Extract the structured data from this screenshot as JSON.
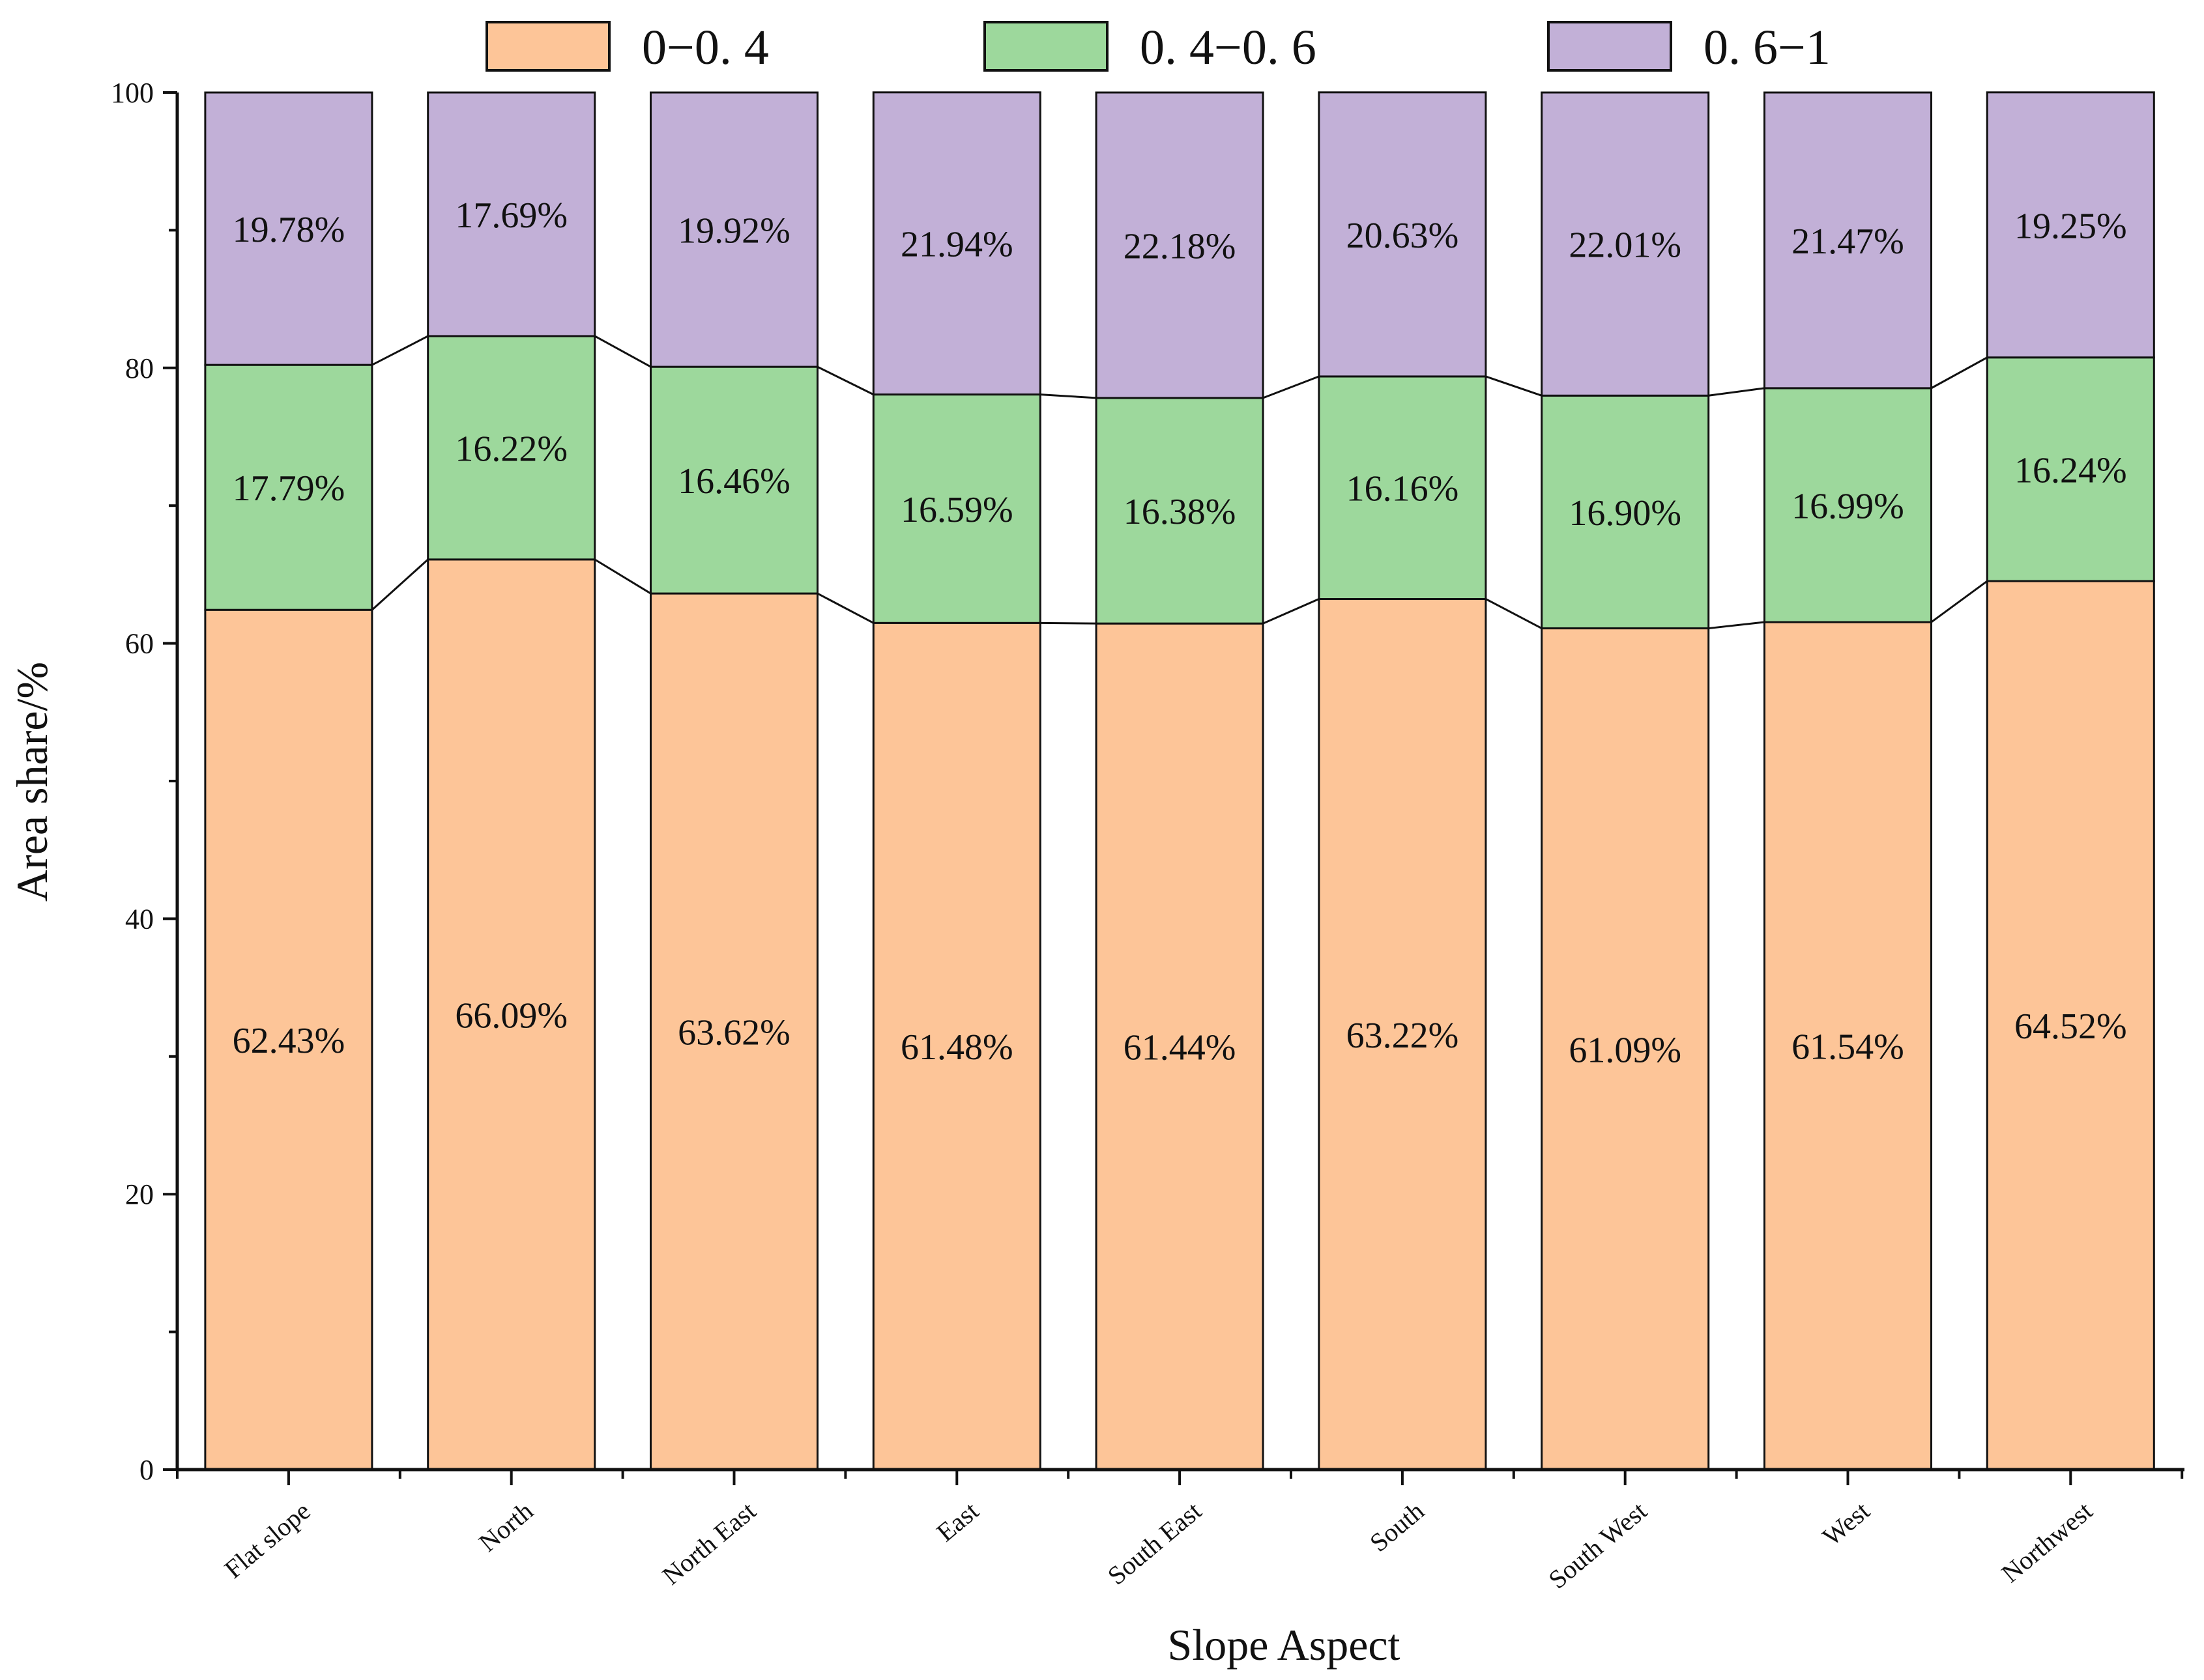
{
  "chart_data": {
    "type": "bar",
    "stacked": true,
    "title": "",
    "xlabel": "Slope Aspect",
    "ylabel": "Area share/%",
    "ylim": [
      0,
      100
    ],
    "yticks": [
      0,
      20,
      40,
      60,
      80,
      100
    ],
    "legend_position": "top-center",
    "connector_lines": true,
    "categories": [
      "Flat slope",
      "North",
      "North East",
      "East",
      "South East",
      "South",
      "South West",
      "West",
      "Northwest"
    ],
    "series": [
      {
        "name": "0−0. 4",
        "color": "#FDC598",
        "values": [
          62.43,
          66.09,
          63.62,
          61.48,
          61.44,
          63.22,
          61.09,
          61.54,
          64.52
        ],
        "labels": [
          "62.43%",
          "66.09%",
          "63.62%",
          "61.48%",
          "61.44%",
          "63.22%",
          "61.09%",
          "61.54%",
          "64.52%"
        ]
      },
      {
        "name": "0. 4−0. 6",
        "color": "#9DD89C",
        "values": [
          17.79,
          16.22,
          16.46,
          16.59,
          16.38,
          16.16,
          16.9,
          16.99,
          16.24
        ],
        "labels": [
          "17.79%",
          "16.22%",
          "16.46%",
          "16.59%",
          "16.38%",
          "16.16%",
          "16.90%",
          "16.99%",
          "16.24%"
        ]
      },
      {
        "name": "0. 6−1",
        "color": "#C2B0D7",
        "values": [
          19.78,
          17.69,
          19.92,
          21.94,
          22.18,
          20.63,
          22.01,
          21.47,
          19.25
        ],
        "labels": [
          "19.78%",
          "17.69%",
          "19.92%",
          "21.94%",
          "22.18%",
          "20.63%",
          "22.01%",
          "21.47%",
          "19.25%"
        ]
      }
    ]
  }
}
